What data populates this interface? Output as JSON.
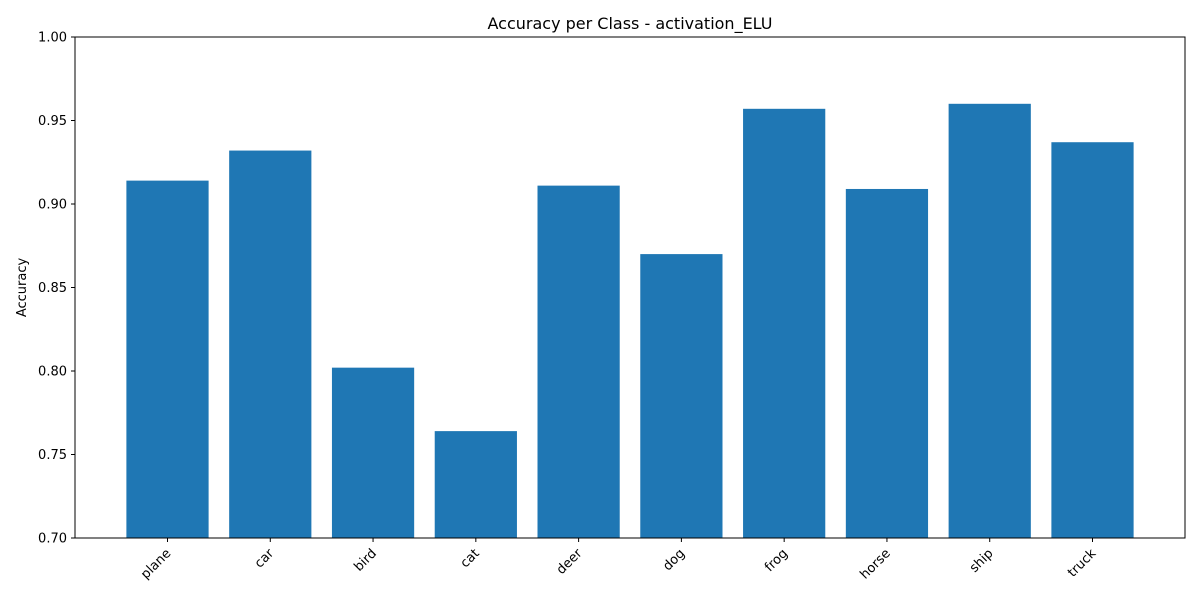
{
  "chart_data": {
    "type": "bar",
    "title": "Accuracy per Class - activation_ELU",
    "xlabel": "",
    "ylabel": "Accuracy",
    "categories": [
      "plane",
      "car",
      "bird",
      "cat",
      "deer",
      "dog",
      "frog",
      "horse",
      "ship",
      "truck"
    ],
    "values": [
      0.914,
      0.932,
      0.802,
      0.764,
      0.911,
      0.87,
      0.957,
      0.909,
      0.96,
      0.937
    ],
    "ylim": [
      0.7,
      1.0
    ],
    "yticks": [
      "0.70",
      "0.75",
      "0.80",
      "0.85",
      "0.90",
      "0.95",
      "1.00"
    ],
    "bar_color": "#1f77b4",
    "grid": false,
    "xtick_rotation": "45 degrees"
  }
}
